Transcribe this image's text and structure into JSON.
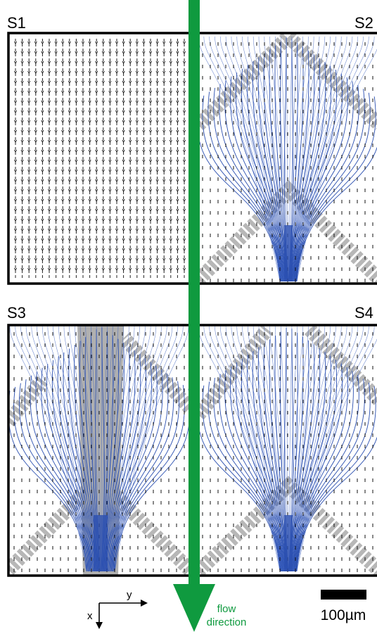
{
  "panels": [
    {
      "label": "S1"
    },
    {
      "label": "S2"
    },
    {
      "label": "S3"
    },
    {
      "label": "S4"
    }
  ],
  "axes": {
    "x_label": "x",
    "y_label": "y"
  },
  "flow": {
    "line1": "flow",
    "line2": "direction"
  },
  "scale_bar": {
    "label": "100µm"
  }
}
